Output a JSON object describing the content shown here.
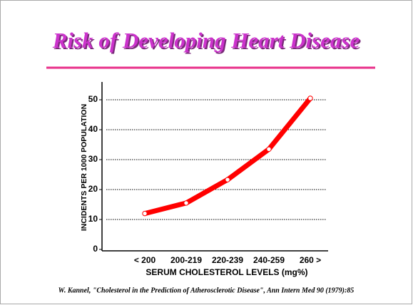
{
  "chart_data": {
    "type": "line",
    "title": "Risk of Developing Heart Disease",
    "y_label": "INCIDENTS PER 1000 POPULATION",
    "x_label": "SERUM CHOLESTEROL LEVELS (mg%)",
    "source": "W. Kannel, \"Cholesterol in the Prediction of Atherosclerotic Disease\", Ann Intern Med 90  (1979):85",
    "categories": [
      "< 200",
      "200-219",
      "220-239",
      "240-259",
      "260 >"
    ],
    "series": [
      {
        "color": "#ff0000",
        "values": [
          12,
          15.5,
          23.3,
          33.5,
          50.5
        ]
      }
    ],
    "ylim": [
      0,
      55
    ],
    "yticks": [
      0,
      10,
      20,
      30,
      40,
      50
    ],
    "grid": true
  }
}
